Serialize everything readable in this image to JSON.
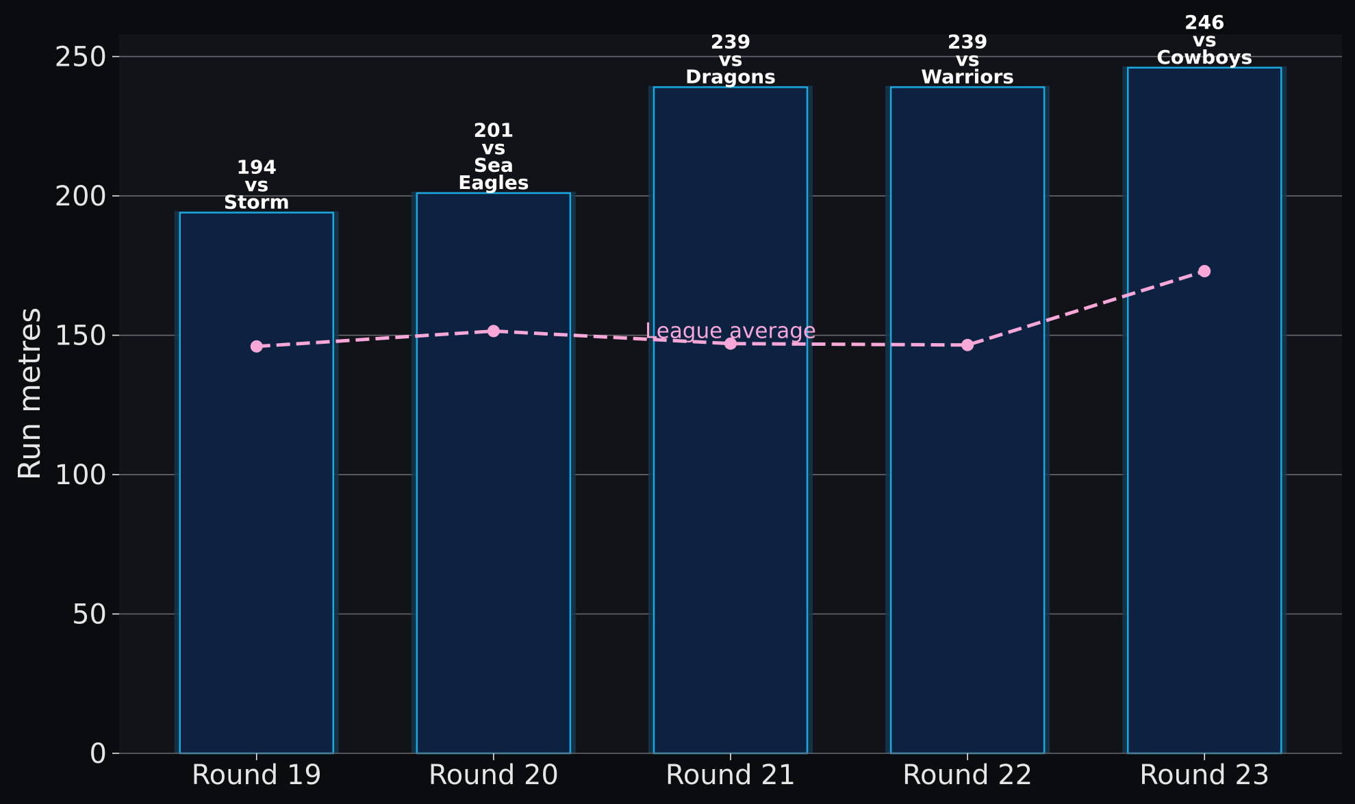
{
  "chart_data": {
    "type": "bar",
    "title": "",
    "xlabel": "",
    "ylabel": "Run metres",
    "ylim": [
      0,
      258
    ],
    "yticks": [
      0,
      50,
      100,
      150,
      200,
      250
    ],
    "categories": [
      "Round 19",
      "Round 20",
      "Round 21",
      "Round 22",
      "Round 23"
    ],
    "series": [
      {
        "type": "bar",
        "values": [
          194,
          201,
          239,
          239,
          246
        ],
        "labels": [
          [
            "194",
            "vs",
            "Storm"
          ],
          [
            "201",
            "vs",
            "Sea",
            "Eagles"
          ],
          [
            "239",
            "vs",
            "Dragons"
          ],
          [
            "239",
            "vs",
            "Warriors"
          ],
          [
            "246",
            "vs",
            "Cowboys"
          ]
        ]
      },
      {
        "type": "line",
        "name": "League average",
        "style": "dashed",
        "values": [
          146,
          151.5,
          147,
          146.5,
          173
        ]
      }
    ],
    "grid": "horizontal",
    "legend": "none",
    "colors": {
      "background": "#0b0c10",
      "plot_background": "#121219",
      "bar_fill": "#0c2240",
      "bar_edge": "#1ba8e0",
      "bar_glow": "#15384e",
      "line": "#f7a8d8",
      "grid": "#6a6a70",
      "text": "#e6e6e6"
    }
  }
}
